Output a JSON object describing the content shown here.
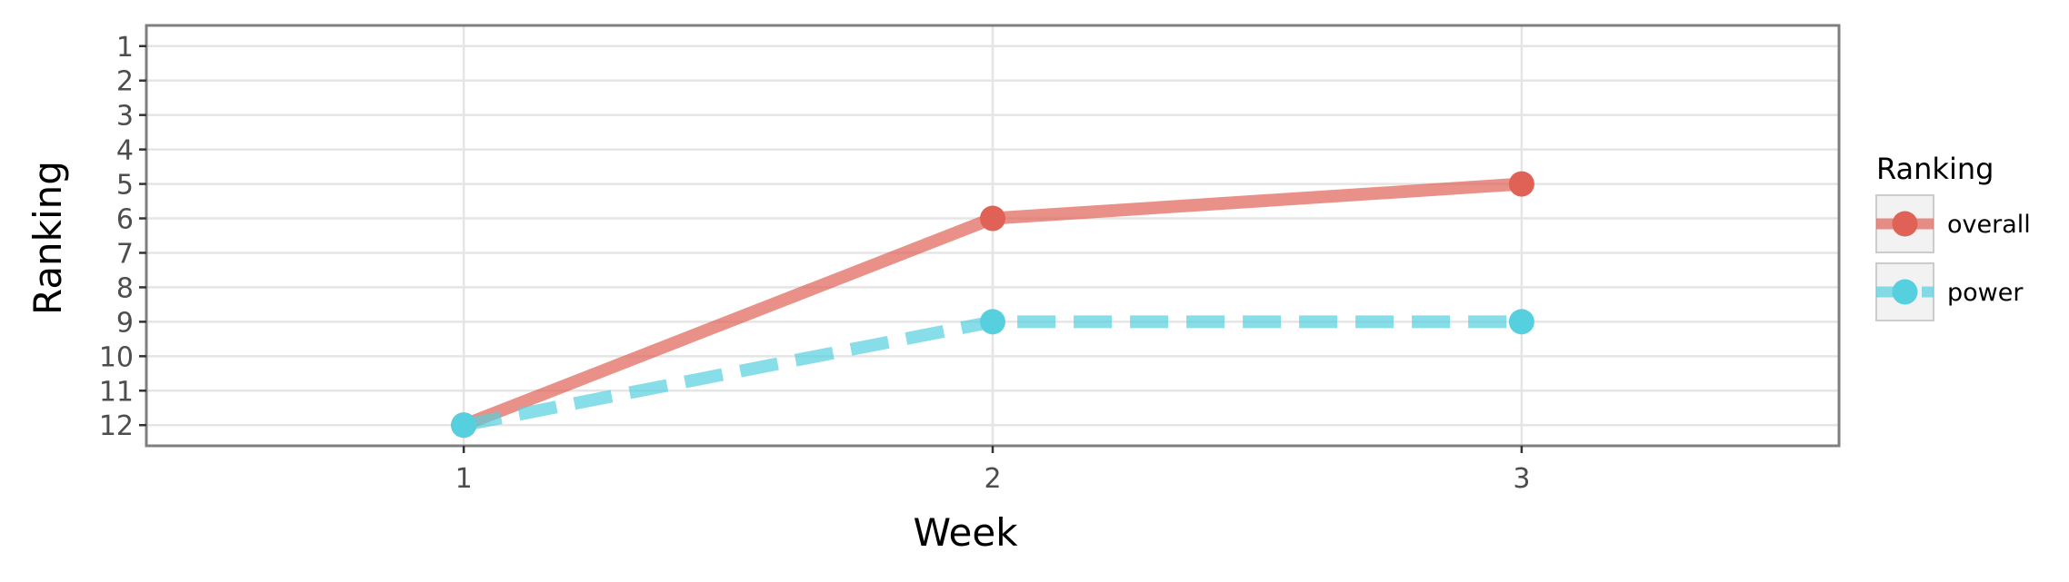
{
  "chart_data": {
    "type": "line",
    "xlabel": "Week",
    "ylabel": "Ranking",
    "x": [
      1,
      2,
      3
    ],
    "x_ticks": [
      "1",
      "2",
      "3"
    ],
    "xlim": [
      0.4,
      3.6
    ],
    "y_ticks": [
      "1",
      "2",
      "3",
      "4",
      "5",
      "6",
      "7",
      "8",
      "9",
      "10",
      "11",
      "12"
    ],
    "ylim": [
      12.6,
      0.4
    ],
    "y_reversed": true,
    "grid": true,
    "legend": {
      "title": "Ranking",
      "placement": "right"
    },
    "series": [
      {
        "name": "overall",
        "values": [
          12,
          6,
          5
        ],
        "color": "#e06155",
        "line_style": "solid"
      },
      {
        "name": "power",
        "values": [
          12,
          9,
          9
        ],
        "color": "#56d0de",
        "line_style": "dashed"
      }
    ]
  }
}
